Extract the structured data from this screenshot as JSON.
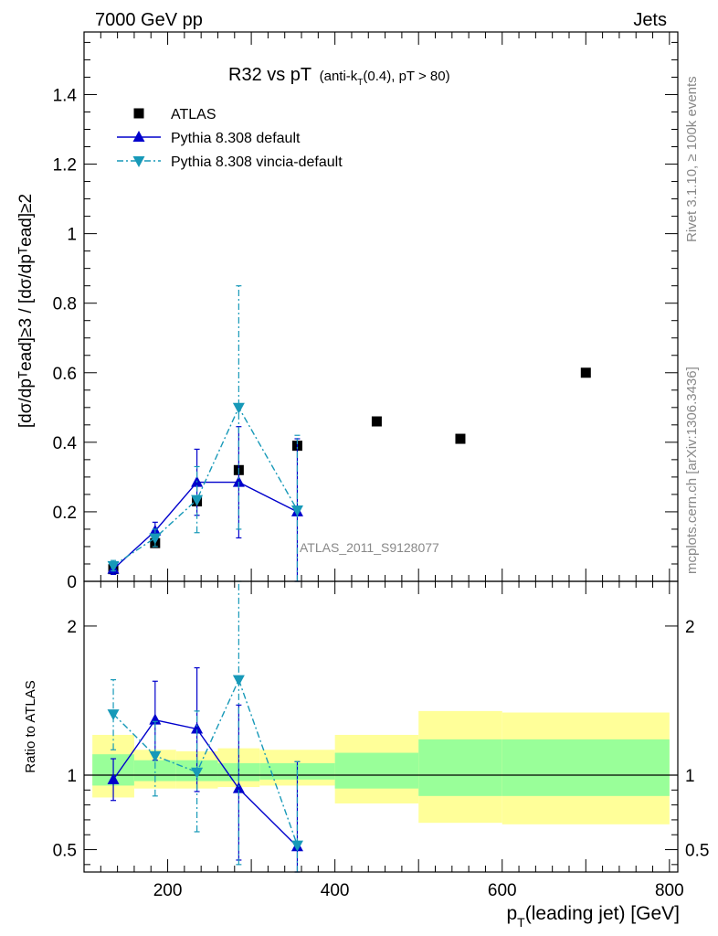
{
  "header": {
    "left": "7000 GeV pp",
    "right": "Jets",
    "side_rivet": "Rivet 3.1.10, ≥ 100k events",
    "side_mcplots": "mcplots.cern.ch [arXiv:1306.3436]",
    "analysis": "ATLAS_2011_S9128077"
  },
  "chart_data": [
    {
      "type": "scatter",
      "title_main": "R32 vs pT",
      "title_sub_a": "(anti-k",
      "title_sub_sub": "T",
      "title_sub_b": "(0.4), pT > 80)",
      "ylabel": "[dσ/dpᵀead]≥3 / [dσ/dpᵀead]≥2",
      "ylim": [
        0,
        1.58
      ],
      "xlim": [
        100,
        810
      ],
      "yticks": [
        {
          "v": 0,
          "label": "0"
        },
        {
          "v": 0.2,
          "label": "0.2"
        },
        {
          "v": 0.4,
          "label": "0.4"
        },
        {
          "v": 0.6,
          "label": "0.6"
        },
        {
          "v": 0.8,
          "label": "0.8"
        },
        {
          "v": 1.0,
          "label": "1"
        },
        {
          "v": 1.2,
          "label": "1.2"
        },
        {
          "v": 1.4,
          "label": "1.4"
        }
      ],
      "legend_position": "top-left",
      "series": [
        {
          "name": "ATLAS",
          "color": "#000000",
          "marker": "square",
          "points": [
            {
              "x": 135,
              "y": 0.035
            },
            {
              "x": 185,
              "y": 0.11
            },
            {
              "x": 235,
              "y": 0.23
            },
            {
              "x": 285,
              "y": 0.32
            },
            {
              "x": 355,
              "y": 0.39
            },
            {
              "x": 450,
              "y": 0.46
            },
            {
              "x": 550,
              "y": 0.41
            },
            {
              "x": 700,
              "y": 0.6
            }
          ]
        },
        {
          "name": "Pythia 8.308 default",
          "color": "#0000cc",
          "marker": "triangle-up",
          "line": "solid",
          "points": [
            {
              "x": 135,
              "y": 0.035,
              "lo": 0.02,
              "hi": 0.05
            },
            {
              "x": 185,
              "y": 0.145,
              "lo": 0.12,
              "hi": 0.17
            },
            {
              "x": 235,
              "y": 0.285,
              "lo": 0.19,
              "hi": 0.38
            },
            {
              "x": 285,
              "y": 0.285,
              "lo": 0.125,
              "hi": 0.445
            },
            {
              "x": 355,
              "y": 0.2,
              "lo": 0.0,
              "hi": 0.41
            }
          ]
        },
        {
          "name": "Pythia 8.308 vincia-default",
          "color": "#1799b8",
          "marker": "triangle-down",
          "line": "dashdot",
          "points": [
            {
              "x": 135,
              "y": 0.045,
              "lo": 0.03,
              "hi": 0.06
            },
            {
              "x": 185,
              "y": 0.125,
              "lo": 0.1,
              "hi": 0.15
            },
            {
              "x": 235,
              "y": 0.235,
              "lo": 0.14,
              "hi": 0.33
            },
            {
              "x": 285,
              "y": 0.5,
              "lo": 0.15,
              "hi": 0.85
            },
            {
              "x": 355,
              "y": 0.205,
              "lo": 0.0,
              "hi": 0.42
            }
          ]
        }
      ]
    },
    {
      "type": "scatter",
      "ylabel": "Ratio to ATLAS",
      "ylim": [
        0.35,
        2.3
      ],
      "xlim": [
        100,
        810
      ],
      "xlabel_pre": "p",
      "xlabel_sub": "T",
      "xlabel_post": "(leading jet) [GeV]",
      "xticks": [
        {
          "v": 200,
          "label": "200"
        },
        {
          "v": 400,
          "label": "400"
        },
        {
          "v": 600,
          "label": "600"
        },
        {
          "v": 800,
          "label": "800"
        }
      ],
      "yticks": [
        {
          "v": 0.5,
          "label": "0.5"
        },
        {
          "v": 1.0,
          "label": "1"
        },
        {
          "v": 2.0,
          "label": "2"
        }
      ],
      "bands": [
        {
          "x0": 110,
          "x1": 160,
          "yellow": [
            0.85,
            1.27
          ],
          "green": [
            0.93,
            1.14
          ]
        },
        {
          "x0": 160,
          "x1": 210,
          "yellow": [
            0.91,
            1.17
          ],
          "green": [
            0.96,
            1.1
          ]
        },
        {
          "x0": 210,
          "x1": 260,
          "yellow": [
            0.91,
            1.16
          ],
          "green": [
            0.96,
            1.1
          ]
        },
        {
          "x0": 260,
          "x1": 310,
          "yellow": [
            0.92,
            1.18
          ],
          "green": [
            0.96,
            1.08
          ]
        },
        {
          "x0": 310,
          "x1": 400,
          "yellow": [
            0.93,
            1.17
          ],
          "green": [
            0.97,
            1.08
          ]
        },
        {
          "x0": 400,
          "x1": 500,
          "yellow": [
            0.81,
            1.27
          ],
          "green": [
            0.91,
            1.15
          ]
        },
        {
          "x0": 500,
          "x1": 600,
          "yellow": [
            0.68,
            1.43
          ],
          "green": [
            0.86,
            1.24
          ]
        },
        {
          "x0": 600,
          "x1": 800,
          "yellow": [
            0.67,
            1.42
          ],
          "green": [
            0.86,
            1.24
          ]
        }
      ],
      "series": [
        {
          "name": "Pythia 8.308 default",
          "color": "#0000cc",
          "marker": "triangle-up",
          "line": "solid",
          "points": [
            {
              "x": 135,
              "y": 0.97,
              "lo": 0.83,
              "hi": 1.11
            },
            {
              "x": 185,
              "y": 1.37,
              "lo": 1.1,
              "hi": 1.63
            },
            {
              "x": 235,
              "y": 1.31,
              "lo": 0.89,
              "hi": 1.72
            },
            {
              "x": 285,
              "y": 0.91,
              "lo": 0.43,
              "hi": 1.47
            },
            {
              "x": 355,
              "y": 0.52,
              "lo": 0.3,
              "hi": 1.09
            }
          ]
        },
        {
          "name": "Pythia 8.308 vincia-default",
          "color": "#1799b8",
          "marker": "triangle-down",
          "line": "dashdot",
          "points": [
            {
              "x": 135,
              "y": 1.41,
              "lo": 1.17,
              "hi": 1.64
            },
            {
              "x": 185,
              "y": 1.13,
              "lo": 0.86,
              "hi": 1.36
            },
            {
              "x": 235,
              "y": 1.02,
              "lo": 0.62,
              "hi": 1.43
            },
            {
              "x": 285,
              "y": 1.64,
              "lo": 0.4,
              "hi": 2.4
            },
            {
              "x": 355,
              "y": 0.53,
              "lo": 0.3,
              "hi": 1.09
            }
          ]
        }
      ]
    }
  ]
}
